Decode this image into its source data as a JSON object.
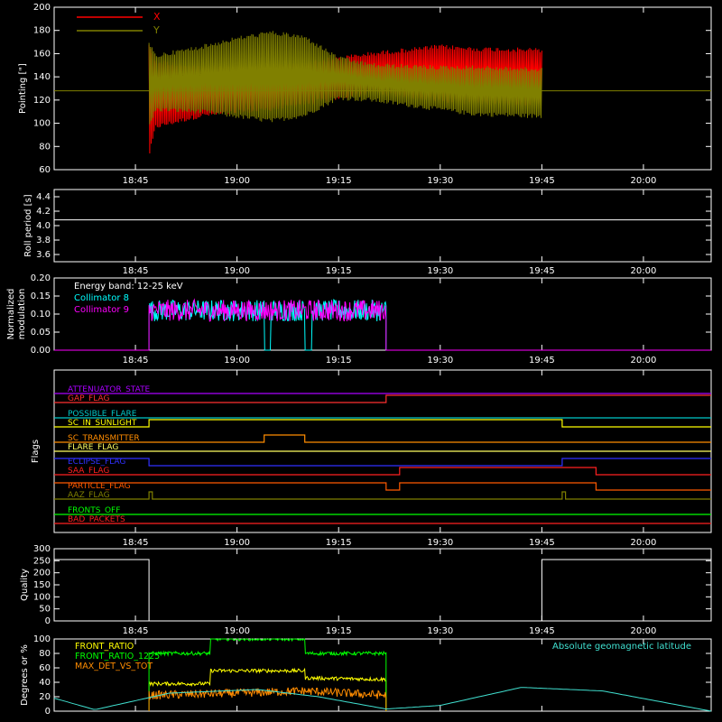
{
  "x_ticks": [
    "18:45",
    "19:00",
    "19:15",
    "19:30",
    "19:45",
    "20:00"
  ],
  "chart_data": [
    {
      "type": "line",
      "ylabel": "Pointing [\"]",
      "ylim": [
        60,
        200
      ],
      "yticks": [
        "60",
        "80",
        "100",
        "120",
        "140",
        "160",
        "180",
        "200"
      ],
      "legend": [
        {
          "name": "X",
          "color": "#ff0000"
        },
        {
          "name": "Y",
          "color": "#808000"
        }
      ],
      "series": [
        {
          "name": "X",
          "color": "#ff0000",
          "x": [
            "18:47",
            "18:48",
            "18:55",
            "19:05",
            "19:15",
            "19:20",
            "19:30",
            "19:35",
            "19:45"
          ],
          "ymin": [
            70,
            95,
            105,
            110,
            120,
            125,
            118,
            116,
            115
          ],
          "ymax": [
            170,
            155,
            150,
            150,
            158,
            162,
            168,
            166,
            165
          ]
        },
        {
          "name": "Y",
          "color": "#808000",
          "x": [
            "18:47",
            "18:48",
            "18:55",
            "19:00",
            "19:05",
            "19:10",
            "19:15",
            "19:20",
            "19:30",
            "19:35",
            "19:45"
          ],
          "ymin": [
            95,
            110,
            108,
            104,
            100,
            105,
            120,
            118,
            110,
            106,
            104
          ],
          "ymax": [
            170,
            160,
            168,
            175,
            180,
            176,
            158,
            152,
            150,
            150,
            148
          ]
        }
      ],
      "baseline": {
        "value": 128,
        "color": "#808000"
      }
    },
    {
      "type": "line",
      "ylabel": "Roll period [s]",
      "ylim": [
        3.5,
        4.5
      ],
      "yticks": [
        "3.6",
        "3.8",
        "4.0",
        "4.2",
        "4.4"
      ],
      "series": [
        {
          "name": "",
          "color": "#ffffff",
          "x": [
            "18:33",
            "20:10"
          ],
          "y": [
            4.08,
            4.08
          ]
        }
      ]
    },
    {
      "type": "line",
      "ylabel": "Normalized modulation",
      "ylim": [
        0.0,
        0.2
      ],
      "yticks": [
        "0.00",
        "0.05",
        "0.10",
        "0.15",
        "0.20"
      ],
      "legend_title": "Energy band: 12-25 keV",
      "legend": [
        {
          "name": "Collimator 8",
          "color": "#00ffff"
        },
        {
          "name": "Collimator 9",
          "color": "#ff00ff"
        }
      ],
      "series": [
        {
          "name": "Collimator 8",
          "color": "#00ffff",
          "x_start": "18:47",
          "x_end": "19:22",
          "level": 0.11,
          "noise": 0.03,
          "dropouts": [
            [
              "19:04",
              "19:05"
            ],
            [
              "19:10",
              "19:11"
            ]
          ]
        },
        {
          "name": "Collimator 9",
          "color": "#ff00ff",
          "x_start": "18:47",
          "x_end": "19:22",
          "level": 0.11,
          "noise": 0.03
        }
      ]
    },
    {
      "type": "line",
      "ylabel": "Flags",
      "flags": [
        {
          "name": "ATTENUATOR_STATE",
          "color": "#aa00ff",
          "segments": [
            [
              "18:33",
              "20:10",
              0
            ]
          ]
        },
        {
          "name": "GAP_FLAG",
          "color": "#ff3030",
          "segments": [
            [
              "18:33",
              "19:22",
              0
            ],
            [
              "19:22",
              "20:10",
              1
            ]
          ]
        },
        {
          "name": "POSSIBLE_FLARE",
          "color": "#00c8c8",
          "segments": [
            [
              "18:33",
              "20:10",
              0
            ]
          ]
        },
        {
          "name": "SC_IN_SUNLIGHT",
          "color": "#ffff00",
          "segments": [
            [
              "18:33",
              "18:47",
              0
            ],
            [
              "18:47",
              "19:48",
              1
            ],
            [
              "19:48",
              "20:10",
              0
            ]
          ]
        },
        {
          "name": "SC_TRANSMITTER",
          "color": "#ff8c00",
          "segments": [
            [
              "18:33",
              "19:04",
              0
            ],
            [
              "19:04",
              "19:10",
              1
            ],
            [
              "19:10",
              "20:10",
              0
            ]
          ]
        },
        {
          "name": "FLARE_FLAG",
          "color": "#ffff60",
          "segments": [
            [
              "18:33",
              "20:10",
              0
            ]
          ]
        },
        {
          "name": "ECLIPSE_FLAG",
          "color": "#3030ff",
          "segments": [
            [
              "18:33",
              "18:47",
              1
            ],
            [
              "18:47",
              "19:48",
              0
            ],
            [
              "19:48",
              "20:10",
              1
            ]
          ]
        },
        {
          "name": "SAA_FLAG",
          "color": "#ff2020",
          "segments": [
            [
              "18:33",
              "19:24",
              0
            ],
            [
              "19:24",
              "19:53",
              1
            ],
            [
              "19:53",
              "20:10",
              0
            ]
          ]
        },
        {
          "name": "PARTICLE_FLAG",
          "color": "#ff5a00",
          "segments": [
            [
              "18:33",
              "19:22",
              1
            ],
            [
              "19:22",
              "19:24",
              0
            ],
            [
              "19:24",
              "19:53",
              1
            ],
            [
              "19:53",
              "20:10",
              0
            ]
          ]
        },
        {
          "name": "AAZ_FLAG",
          "color": "#808000",
          "segments": [
            [
              "18:33",
              "18:47",
              0
            ],
            [
              "18:47",
              "18:47.5",
              1
            ],
            [
              "18:47.5",
              "19:48",
              0
            ],
            [
              "19:48",
              "19:48.5",
              1
            ],
            [
              "19:48.5",
              "20:10",
              0
            ]
          ]
        },
        {
          "name": "FRONTS_OFF",
          "color": "#00ff00",
          "segments": [
            [
              "18:33",
              "20:10",
              0
            ]
          ]
        },
        {
          "name": "BAD_PACKETS",
          "color": "#ff2020",
          "segments": [
            [
              "18:33",
              "20:10",
              0
            ]
          ]
        }
      ]
    },
    {
      "type": "line",
      "ylabel": "Quality",
      "ylim": [
        0,
        300
      ],
      "yticks": [
        "0",
        "50",
        "100",
        "150",
        "200",
        "250",
        "300"
      ],
      "series": [
        {
          "name": "",
          "color": "#ffffff",
          "x": [
            "18:33",
            "18:47",
            "18:47",
            "19:45",
            "19:45",
            "20:10"
          ],
          "y": [
            255,
            255,
            0,
            0,
            255,
            255
          ]
        }
      ]
    },
    {
      "type": "line",
      "ylabel": "Degrees or %",
      "ylim": [
        0,
        100
      ],
      "yticks": [
        "0",
        "20",
        "40",
        "60",
        "80",
        "100"
      ],
      "annotation": "Absolute geomagnetic latitude",
      "legend": [
        {
          "name": "FRONT_RATIO",
          "color": "#ffff00"
        },
        {
          "name": "FRONT_RATIO_1225",
          "color": "#00ff00"
        },
        {
          "name": "MAX_DET_VS_TOT",
          "color": "#ff8c00"
        }
      ],
      "series": [
        {
          "name": "FRONT_RATIO",
          "color": "#ffff00",
          "x": [
            "18:47",
            "18:56",
            "18:56",
            "19:10",
            "19:10",
            "19:22"
          ],
          "y": [
            38,
            38,
            56,
            56,
            46,
            44
          ]
        },
        {
          "name": "FRONT_RATIO_1225",
          "color": "#00ff00",
          "x": [
            "18:47",
            "18:56",
            "18:56",
            "19:10",
            "19:10",
            "19:22"
          ],
          "y": [
            80,
            80,
            100,
            100,
            80,
            80
          ]
        },
        {
          "name": "MAX_DET_VS_TOT",
          "color": "#ff8c00",
          "x": [
            "18:47",
            "19:00",
            "19:10",
            "19:22"
          ],
          "y": [
            22,
            25,
            28,
            22
          ]
        },
        {
          "name": "Absolute geomagnetic latitude",
          "color": "#40e0d0",
          "x": [
            "18:33",
            "18:39",
            "18:50",
            "19:03",
            "19:12",
            "19:22",
            "19:30",
            "19:42",
            "19:54",
            "20:10"
          ],
          "y": [
            18,
            2,
            25,
            30,
            20,
            3,
            8,
            33,
            28,
            0
          ]
        }
      ]
    }
  ]
}
